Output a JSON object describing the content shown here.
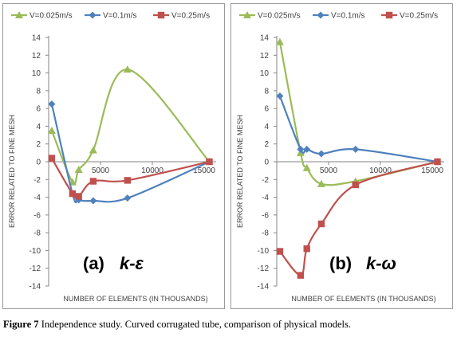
{
  "colors": {
    "green": "#9bbb59",
    "blue": "#4f81bd",
    "red": "#c0504d",
    "axis": "#868686",
    "text": "#404040"
  },
  "caption": {
    "label": "Figure 7",
    "text": " Independence study. Curved corrugated tube, comparison of physical models."
  },
  "chart_data": [
    {
      "type": "line",
      "xlabel": "NUMBER OF ELEMENTS (IN THOUSANDS)",
      "ylabel": "ERROR RELATED TO FINE MESH",
      "xlim": [
        0,
        16000
      ],
      "ylim": [
        -14,
        14
      ],
      "xticks": [
        {
          "v": 5000,
          "label": "5000"
        },
        {
          "v": 10000,
          "label": "10000"
        },
        {
          "v": 15000,
          "label": "15000"
        }
      ],
      "yticks": [
        {
          "v": 14,
          "label": "14"
        },
        {
          "v": 12,
          "label": "12"
        },
        {
          "v": 10,
          "label": "10"
        },
        {
          "v": 8,
          "label": "8"
        },
        {
          "v": 6,
          "label": "6"
        },
        {
          "v": 4,
          "label": "4"
        },
        {
          "v": 2,
          "label": "2"
        },
        {
          "v": 0,
          "label": "0"
        },
        {
          "v": -2,
          "label": "-2"
        },
        {
          "v": -4,
          "label": "-4"
        },
        {
          "v": -6,
          "label": "-6"
        },
        {
          "v": -8,
          "label": "-8"
        },
        {
          "v": -10,
          "label": "-10"
        },
        {
          "v": -12,
          "label": "-12"
        },
        {
          "v": -14,
          "label": "-14"
        }
      ],
      "legend_position": "top",
      "grid": false,
      "annotation_paren": "(a)",
      "annotation_model": "k-ε",
      "series": [
        {
          "name": "V=0.025m/s",
          "color": "#9bbb59",
          "marker": "triangle",
          "x": [
            300,
            2300,
            2900,
            4300,
            7600,
            15500
          ],
          "y": [
            3.5,
            -2.3,
            -0.9,
            1.3,
            10.4,
            0
          ]
        },
        {
          "name": "V=0.1m/s",
          "color": "#4f81bd",
          "marker": "diamond",
          "x": [
            300,
            2300,
            2900,
            4300,
            7600,
            15500
          ],
          "y": [
            6.5,
            -3.6,
            -4.3,
            -4.4,
            -4.1,
            0
          ]
        },
        {
          "name": "V=0.25m/s",
          "color": "#c0504d",
          "marker": "square",
          "x": [
            300,
            2300,
            2900,
            4300,
            7600,
            15500
          ],
          "y": [
            0.4,
            -3.6,
            -3.9,
            -2.2,
            -2.1,
            0
          ]
        }
      ]
    },
    {
      "type": "line",
      "xlabel": "NUMBER OF ELEMENTS (IN THOUSANDS)",
      "ylabel": "ERROR RELATED TO FINE MESH",
      "xlim": [
        0,
        16000
      ],
      "ylim": [
        -14,
        14
      ],
      "xticks": [
        {
          "v": 5000,
          "label": "5000"
        },
        {
          "v": 10000,
          "label": "10000"
        },
        {
          "v": 15000,
          "label": "15000"
        }
      ],
      "yticks": [
        {
          "v": 14,
          "label": "14"
        },
        {
          "v": 12,
          "label": "12"
        },
        {
          "v": 10,
          "label": "10"
        },
        {
          "v": 8,
          "label": "8"
        },
        {
          "v": 6,
          "label": "6"
        },
        {
          "v": 4,
          "label": "4"
        },
        {
          "v": 2,
          "label": "2"
        },
        {
          "v": 0,
          "label": "0"
        },
        {
          "v": -2,
          "label": "-2"
        },
        {
          "v": -4,
          "label": "-4"
        },
        {
          "v": -6,
          "label": "-6"
        },
        {
          "v": -8,
          "label": "-8"
        },
        {
          "v": -10,
          "label": "-10"
        },
        {
          "v": -12,
          "label": "-12"
        },
        {
          "v": -14,
          "label": "-14"
        }
      ],
      "legend_position": "top",
      "grid": false,
      "annotation_paren": "(b)",
      "annotation_model": "k-ω",
      "series": [
        {
          "name": "V=0.025m/s",
          "color": "#9bbb59",
          "marker": "triangle",
          "x": [
            300,
            2300,
            2900,
            4300,
            7600,
            15500
          ],
          "y": [
            13.5,
            1.0,
            -0.7,
            -2.5,
            -2.2,
            0
          ]
        },
        {
          "name": "V=0.1m/s",
          "color": "#4f81bd",
          "marker": "diamond",
          "x": [
            300,
            2300,
            2900,
            4300,
            7600,
            15500
          ],
          "y": [
            7.4,
            1.4,
            1.4,
            0.9,
            1.4,
            0
          ]
        },
        {
          "name": "V=0.25m/s",
          "color": "#c0504d",
          "marker": "square",
          "x": [
            300,
            2300,
            2900,
            4300,
            7600,
            15500
          ],
          "y": [
            -10.1,
            -12.8,
            -9.8,
            -7.0,
            -2.6,
            0
          ]
        }
      ]
    }
  ]
}
